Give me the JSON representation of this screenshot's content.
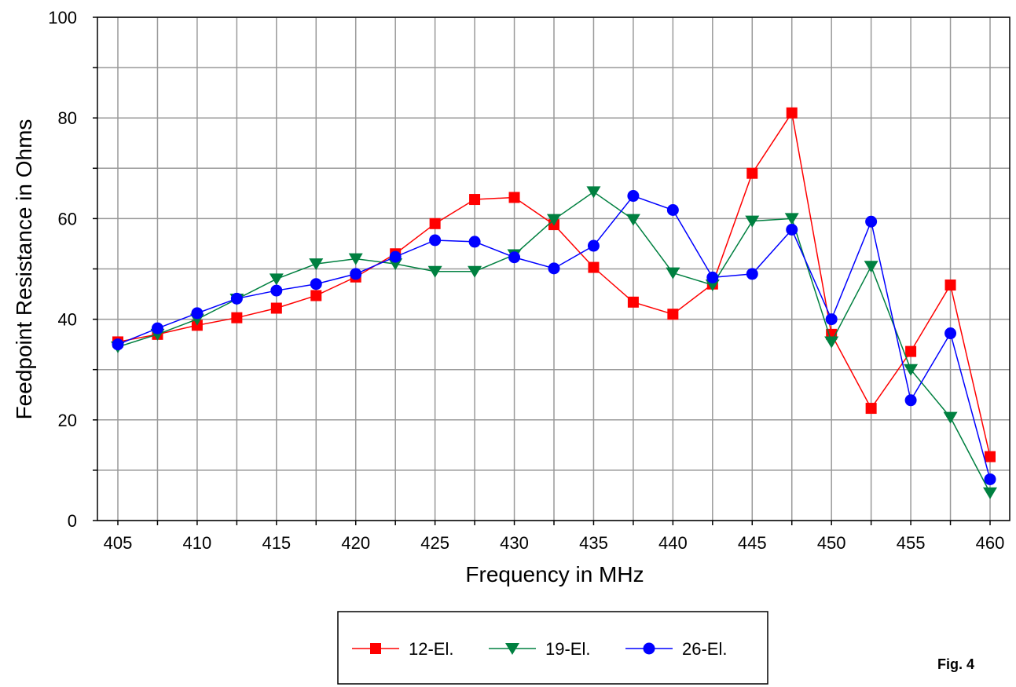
{
  "figure_label": "Fig. 4",
  "chart_data": {
    "type": "line",
    "title": "",
    "xlabel": "Frequency in MHz",
    "ylabel": "Feedpoint Resistance in Ohms",
    "xlim": [
      405,
      460
    ],
    "ylim": [
      0,
      100
    ],
    "x": [
      405,
      407.5,
      410,
      412.5,
      415,
      417.5,
      420,
      422.5,
      425,
      427.5,
      430,
      432.5,
      435,
      437.5,
      440,
      442.5,
      445,
      447.5,
      450,
      452.5,
      455,
      457.5,
      460
    ],
    "x_ticks": [
      405,
      410,
      415,
      420,
      425,
      430,
      435,
      440,
      445,
      450,
      455,
      460
    ],
    "y_ticks": [
      0,
      20,
      40,
      60,
      80,
      100
    ],
    "grid": true,
    "legend_position": "bottom-center",
    "series": [
      {
        "name": "12-El.",
        "color": "#ff0000",
        "marker": "square",
        "values": [
          35.5,
          37.0,
          38.8,
          40.3,
          42.2,
          44.7,
          48.4,
          53.0,
          59.0,
          63.8,
          64.2,
          58.8,
          50.3,
          43.4,
          41.0,
          47.0,
          69.0,
          81.0,
          37.0,
          22.3,
          33.6,
          46.8,
          12.7
        ]
      },
      {
        "name": "19-El.",
        "color": "#008040",
        "marker": "triangle-down",
        "values": [
          34.5,
          37.0,
          40.0,
          44.0,
          48.0,
          51.0,
          52.0,
          51.0,
          49.5,
          49.5,
          52.8,
          59.8,
          65.3,
          59.8,
          49.2,
          46.8,
          59.5,
          60.0,
          35.5,
          50.5,
          30.0,
          20.5,
          5.5
        ]
      },
      {
        "name": "26-El.",
        "color": "#0000ff",
        "marker": "circle",
        "values": [
          35.0,
          38.2,
          41.2,
          44.1,
          45.7,
          47.0,
          49.0,
          52.4,
          55.7,
          55.4,
          52.3,
          50.1,
          54.6,
          64.5,
          61.7,
          48.3,
          49.0,
          57.8,
          40.0,
          59.4,
          23.9,
          37.2,
          8.2
        ]
      }
    ]
  }
}
